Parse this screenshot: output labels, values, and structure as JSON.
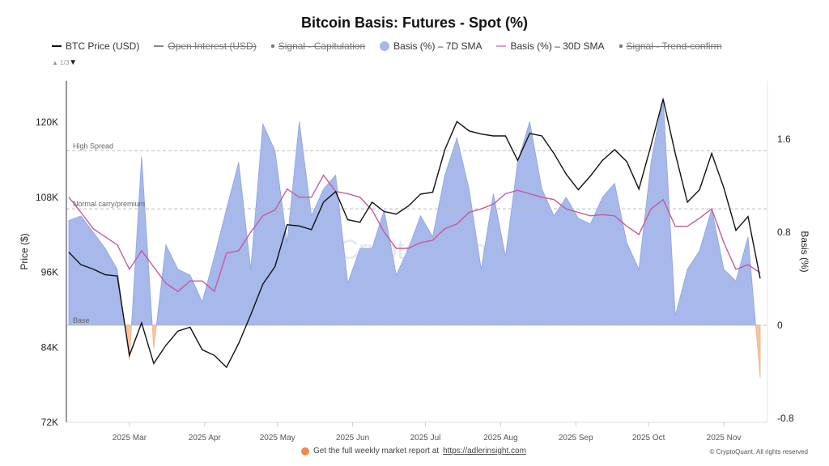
{
  "chart_data": {
    "type": "line",
    "title": "Bitcoin Basis: Futures - Spot (%)",
    "ylabel_left": "Price ($)",
    "ylabel_right": "Basis (%)",
    "left_ticks": [
      {
        "value": 72000,
        "label": "72K"
      },
      {
        "value": 84000,
        "label": "84K"
      },
      {
        "value": 96000,
        "label": "96K"
      },
      {
        "value": 108000,
        "label": "108K"
      },
      {
        "value": 120000,
        "label": "120K"
      }
    ],
    "right_ticks": [
      {
        "value": -0.8,
        "label": "-0.8"
      },
      {
        "value": 0,
        "label": "0"
      },
      {
        "value": 0.8,
        "label": "0.8"
      },
      {
        "value": 1.6,
        "label": "1.6"
      }
    ],
    "ylim_left": [
      72000,
      126600
    ],
    "ylim_right": [
      -0.835,
      2.1
    ],
    "xlim": [
      "2025-02-04",
      "2025-11-18"
    ],
    "x_ticks": [
      {
        "date": "2025-03-01",
        "label": "2025 Mar"
      },
      {
        "date": "2025-04-01",
        "label": "2025 Apr"
      },
      {
        "date": "2025-05-01",
        "label": "2025 May"
      },
      {
        "date": "2025-06-01",
        "label": "2025 Jun"
      },
      {
        "date": "2025-07-01",
        "label": "2025 Jul"
      },
      {
        "date": "2025-08-01",
        "label": "2025 Aug"
      },
      {
        "date": "2025-09-01",
        "label": "2025 Sep"
      },
      {
        "date": "2025-10-01",
        "label": "2025 Oct"
      },
      {
        "date": "2025-11-01",
        "label": "2025 Nov"
      }
    ],
    "reference_lines": [
      {
        "value": 1.5,
        "label": "High Spread"
      },
      {
        "value": 1.0,
        "label": "Normal carry/premium"
      },
      {
        "value": 0,
        "label": "Base"
      }
    ],
    "x": [
      "2025-02-04",
      "2025-02-09",
      "2025-02-14",
      "2025-02-19",
      "2025-02-24",
      "2025-03-01",
      "2025-03-06",
      "2025-03-11",
      "2025-03-16",
      "2025-03-21",
      "2025-03-26",
      "2025-03-31",
      "2025-04-05",
      "2025-04-10",
      "2025-04-15",
      "2025-04-20",
      "2025-04-25",
      "2025-04-30",
      "2025-05-05",
      "2025-05-10",
      "2025-05-15",
      "2025-05-20",
      "2025-05-25",
      "2025-05-30",
      "2025-06-04",
      "2025-06-09",
      "2025-06-14",
      "2025-06-19",
      "2025-06-24",
      "2025-06-29",
      "2025-07-04",
      "2025-07-09",
      "2025-07-14",
      "2025-07-19",
      "2025-07-24",
      "2025-07-29",
      "2025-08-03",
      "2025-08-08",
      "2025-08-13",
      "2025-08-18",
      "2025-08-23",
      "2025-08-28",
      "2025-09-02",
      "2025-09-07",
      "2025-09-12",
      "2025-09-17",
      "2025-09-22",
      "2025-09-27",
      "2025-10-02",
      "2025-10-07",
      "2025-10-12",
      "2025-10-17",
      "2025-10-22",
      "2025-10-27",
      "2025-11-01",
      "2025-11-06",
      "2025-11-11",
      "2025-11-16"
    ],
    "series": [
      {
        "name": "BTC Price (USD)",
        "axis": "left",
        "color": "#111111",
        "values": [
          99200,
          97200,
          96500,
          95600,
          95400,
          82700,
          87900,
          81400,
          84300,
          86600,
          87200,
          83600,
          82700,
          80800,
          84600,
          89200,
          94100,
          96900,
          103600,
          103400,
          102800,
          107200,
          108900,
          104400,
          104000,
          107200,
          105700,
          105300,
          106600,
          108500,
          108800,
          115600,
          120100,
          118600,
          118100,
          117800,
          117800,
          113900,
          118200,
          117800,
          115000,
          111700,
          109200,
          111400,
          113900,
          115600,
          113700,
          109300,
          116300,
          123700,
          115000,
          107200,
          109200,
          115000,
          109500,
          102700,
          104900,
          95000
        ]
      },
      {
        "name": "Basis (%) – 7D SMA",
        "axis": "right",
        "color": "#a7b8ea",
        "neg_color": "#f5c5a0",
        "values": [
          0.9,
          0.94,
          0.8,
          0.66,
          0.48,
          -0.3,
          1.45,
          -0.2,
          0.69,
          0.48,
          0.43,
          0.2,
          0.59,
          1.0,
          1.4,
          0.48,
          1.73,
          1.5,
          0.71,
          1.75,
          0.94,
          1.17,
          1.29,
          0.36,
          0.66,
          0.66,
          0.99,
          0.43,
          0.66,
          0.94,
          0.76,
          1.29,
          1.61,
          1.17,
          0.48,
          1.13,
          0.59,
          1.4,
          1.75,
          1.17,
          0.94,
          1.1,
          0.92,
          0.87,
          1.1,
          1.22,
          0.71,
          0.48,
          1.4,
          1.96,
          0.08,
          0.48,
          0.64,
          1.0,
          0.48,
          0.38,
          0.76,
          -0.45
        ]
      },
      {
        "name": "Basis (%) – 30D SMA",
        "axis": "right",
        "color": "#c55a9e",
        "values": [
          1.1,
          0.97,
          0.83,
          0.76,
          0.69,
          0.48,
          0.64,
          0.5,
          0.36,
          0.29,
          0.38,
          0.38,
          0.29,
          0.62,
          0.64,
          0.8,
          0.94,
          0.99,
          1.17,
          1.1,
          1.1,
          1.29,
          1.15,
          1.13,
          1.1,
          0.99,
          0.8,
          0.66,
          0.66,
          0.71,
          0.73,
          0.83,
          0.87,
          0.97,
          1.0,
          1.04,
          1.13,
          1.16,
          1.13,
          1.1,
          1.08,
          1.0,
          0.97,
          0.94,
          0.95,
          0.94,
          0.85,
          0.78,
          1.0,
          1.08,
          0.85,
          0.85,
          0.92,
          1.0,
          0.71,
          0.48,
          0.52,
          0.45
        ]
      }
    ],
    "legend_placement": "top-left",
    "grid": false
  },
  "legend": [
    {
      "label": "BTC Price (USD)",
      "active": true,
      "marker": "line",
      "color": "#111111"
    },
    {
      "label": "Open Interest (USD)",
      "active": false,
      "marker": "line",
      "color": "#888888"
    },
    {
      "label": "Signal - Capitulation",
      "active": false,
      "marker": "square"
    },
    {
      "label": "Basis (%) – 7D SMA",
      "active": true,
      "marker": "circle",
      "color": "#a7b8ea"
    },
    {
      "label": "Basis (%) – 30D SMA",
      "active": true,
      "marker": "line",
      "color": "#e39ac8"
    },
    {
      "label": "Signal - Trend-confirm",
      "active": false,
      "marker": "dot"
    }
  ],
  "pager": "1/3",
  "watermark": "CryptoQuant",
  "footer": {
    "text": "Get the full weekly market report at ",
    "link": "https://adlerinsight.com",
    "copyright": "© CryptoQuant. All rights reserved"
  }
}
